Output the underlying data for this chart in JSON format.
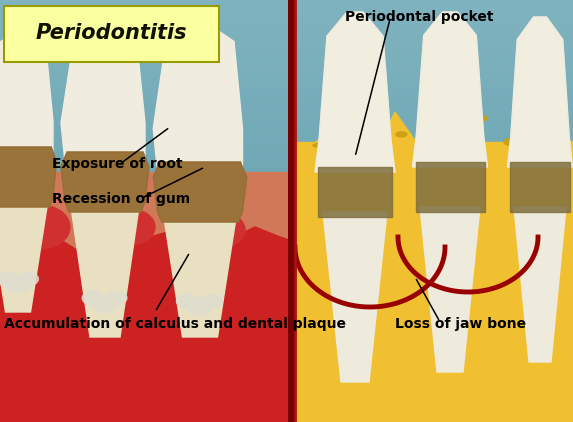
{
  "title": "Periodontitis",
  "title_box_color": "#FAFFA0",
  "background_top_color": "#6BBCCC",
  "background_bottom_color": "#4A9AAA",
  "left_gum_color": "#E07050",
  "left_gum_dark": "#CC3322",
  "right_bone_color": "#F0C830",
  "right_bone_dark": "#D4A820",
  "gum_red": "#CC2020",
  "gum_pink": "#E06040",
  "tooth_crown_color": "#F0EEE0",
  "tooth_root_color": "#E8E4CC",
  "calculus_color": "#B09050",
  "calculus_dark": "#806030",
  "divider_color": "#880000",
  "labels": {
    "periodontal_pocket": "Periodontal pocket",
    "exposure_of_root": "Exposure of root",
    "recession_of_gum": "Recession of gum",
    "accumulation": "Accumulation of calculus and dental plaque",
    "loss_of_jaw_bone": "Loss of jaw bone"
  },
  "font_size_title": 15,
  "font_size_labels": 10
}
